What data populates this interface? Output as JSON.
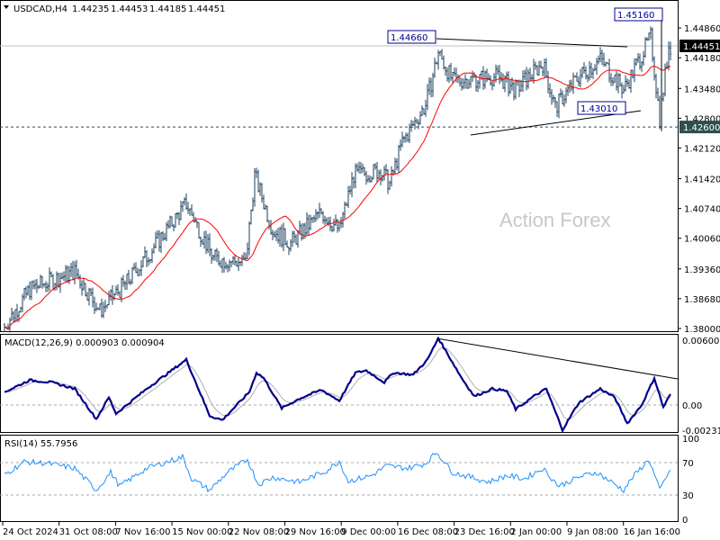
{
  "header": {
    "symbol": "USDCAD,H4",
    "open": "1.44235",
    "high": "1.44453",
    "low": "1.44185",
    "close": "1.44451"
  },
  "watermark": "Action Forex",
  "chart_data": {
    "type": "candlestick",
    "title": "USDCAD,H4",
    "price_axis": {
      "ticks": [
        "1.44860",
        "1.44180",
        "1.43480",
        "1.42800",
        "1.42120",
        "1.41420",
        "1.40740",
        "1.40060",
        "1.39360",
        "1.38680",
        "1.38000"
      ],
      "range": [
        1.38,
        1.4526
      ]
    },
    "current_price": "1.44451",
    "level_line": "1.42600",
    "annotations": [
      "1.44660",
      "1.45160",
      "1.43010"
    ],
    "time_axis": [
      "24 Oct 2024",
      "31 Oct 08:00",
      "7 Nov 16:00",
      "15 Nov 00:00",
      "22 Nov 08:00",
      "29 Nov 16:00",
      "9 Dec 00:00",
      "16 Dec 08:00",
      "23 Dec 16:00",
      "2 Jan 00:00",
      "9 Jan 08:00",
      "16 Jan 16:00"
    ],
    "price_path": [
      [
        2,
        1.381
      ],
      [
        15,
        1.389
      ],
      [
        40,
        1.393
      ],
      [
        54,
        1.384
      ],
      [
        70,
        1.391
      ],
      [
        102,
        1.4085
      ],
      [
        117,
        1.396
      ],
      [
        135,
        1.395
      ],
      [
        140,
        1.415
      ],
      [
        150,
        1.4025
      ],
      [
        160,
        1.3995
      ],
      [
        177,
        1.4065
      ],
      [
        187,
        1.4025
      ],
      [
        195,
        1.415
      ],
      [
        210,
        1.416
      ],
      [
        215,
        1.413
      ],
      [
        222,
        1.4225
      ],
      [
        235,
        1.431
      ],
      [
        242,
        1.443
      ],
      [
        250,
        1.4365
      ],
      [
        275,
        1.4375
      ],
      [
        285,
        1.4345
      ],
      [
        300,
        1.4405
      ],
      [
        307,
        1.4305
      ],
      [
        320,
        1.4375
      ],
      [
        332,
        1.4415
      ],
      [
        345,
        1.4345
      ],
      [
        360,
        1.4465
      ],
      [
        365,
        1.428
      ],
      [
        370,
        1.4445
      ]
    ],
    "macd": {
      "label": "MACD(12,26,9) 0.000903 0.000904",
      "ticks": [
        "0.006007",
        "0.00",
        "-0.002318"
      ],
      "path": [
        [
          1,
          0.0012
        ],
        [
          15,
          0.0023
        ],
        [
          27,
          0.0021
        ],
        [
          40,
          0.0015
        ],
        [
          52,
          -0.0013
        ],
        [
          59,
          0.0007
        ],
        [
          63,
          -0.0008
        ],
        [
          80,
          0.0015
        ],
        [
          102,
          0.0042
        ],
        [
          115,
          -0.001
        ],
        [
          122,
          -0.0014
        ],
        [
          137,
          0.0012
        ],
        [
          141,
          0.003
        ],
        [
          145,
          0.0025
        ],
        [
          155,
          -0.0003
        ],
        [
          165,
          0.0006
        ],
        [
          177,
          0.0014
        ],
        [
          187,
          0.0004
        ],
        [
          196,
          0.003
        ],
        [
          202,
          0.0032
        ],
        [
          212,
          0.0021
        ],
        [
          217,
          0.003
        ],
        [
          228,
          0.0028
        ],
        [
          236,
          0.0042
        ],
        [
          242,
          0.0062
        ],
        [
          255,
          0.0025
        ],
        [
          262,
          0.0008
        ],
        [
          272,
          0.0015
        ],
        [
          280,
          0.0013
        ],
        [
          285,
          -0.0004
        ],
        [
          295,
          0.0008
        ],
        [
          302,
          0.0015
        ],
        [
          311,
          -0.0023
        ],
        [
          320,
          0.0002
        ],
        [
          332,
          0.0015
        ],
        [
          340,
          0.0007
        ],
        [
          347,
          -0.0017
        ],
        [
          355,
          0.0
        ],
        [
          362,
          0.0025
        ],
        [
          367,
          -0.0002
        ],
        [
          371,
          0.001
        ]
      ]
    },
    "rsi": {
      "label": "RSI(14) 55.7956",
      "ticks": [
        "100",
        "70",
        "30",
        "0"
      ],
      "path": [
        [
          1,
          55
        ],
        [
          12,
          71
        ],
        [
          25,
          69
        ],
        [
          40,
          63
        ],
        [
          52,
          36
        ],
        [
          60,
          58
        ],
        [
          65,
          41
        ],
        [
          80,
          63
        ],
        [
          100,
          77
        ],
        [
          105,
          50
        ],
        [
          115,
          36
        ],
        [
          125,
          58
        ],
        [
          136,
          74
        ],
        [
          142,
          43
        ],
        [
          150,
          52
        ],
        [
          165,
          46
        ],
        [
          180,
          60
        ],
        [
          187,
          72
        ],
        [
          192,
          47
        ],
        [
          205,
          54
        ],
        [
          213,
          66
        ],
        [
          225,
          63
        ],
        [
          235,
          69
        ],
        [
          241,
          83
        ],
        [
          250,
          58
        ],
        [
          260,
          52
        ],
        [
          270,
          46
        ],
        [
          280,
          54
        ],
        [
          290,
          50
        ],
        [
          300,
          63
        ],
        [
          309,
          41
        ],
        [
          320,
          52
        ],
        [
          330,
          58
        ],
        [
          345,
          36
        ],
        [
          350,
          52
        ],
        [
          359,
          74
        ],
        [
          365,
          36
        ],
        [
          370,
          58
        ]
      ]
    }
  }
}
